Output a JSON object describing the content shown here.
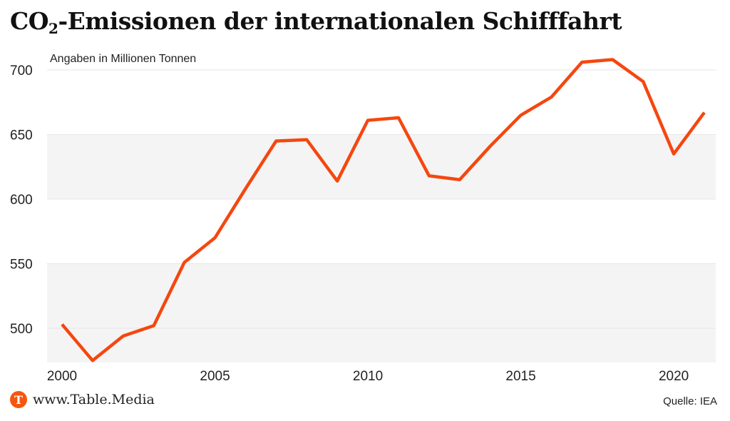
{
  "title": {
    "main": "CO",
    "sub": "2",
    "rest": "-Emissionen der internationalen Schifffahrt"
  },
  "subtitle": "Angaben in Millionen Tonnen",
  "footer": {
    "site": "www.Table.Media",
    "logo_letter": "T",
    "source": "Quelle: IEA"
  },
  "colors": {
    "line": "#f5470f",
    "band": "#f4f4f4",
    "grid": "#e6e6e6"
  },
  "chart_data": {
    "type": "line",
    "title": "CO2-Emissionen der internationalen Schifffahrt",
    "ylabel": "Angaben in Millionen Tonnen",
    "xlabel": "",
    "x": [
      2000,
      2001,
      2002,
      2003,
      2004,
      2005,
      2006,
      2007,
      2008,
      2009,
      2010,
      2011,
      2012,
      2013,
      2014,
      2015,
      2016,
      2017,
      2018,
      2019,
      2020,
      2021
    ],
    "values": [
      503,
      475,
      494,
      502,
      551,
      570,
      608,
      645,
      646,
      614,
      661,
      663,
      618,
      615,
      641,
      665,
      679,
      706,
      708,
      691,
      635,
      667
    ],
    "xticks": [
      "2000",
      "2005",
      "2010",
      "2015",
      "2020"
    ],
    "yticks": [
      "500",
      "550",
      "600",
      "650",
      "700"
    ],
    "ylim": [
      470,
      710
    ],
    "xlim": [
      2000,
      2021
    ],
    "grid": true,
    "legend": "none"
  }
}
